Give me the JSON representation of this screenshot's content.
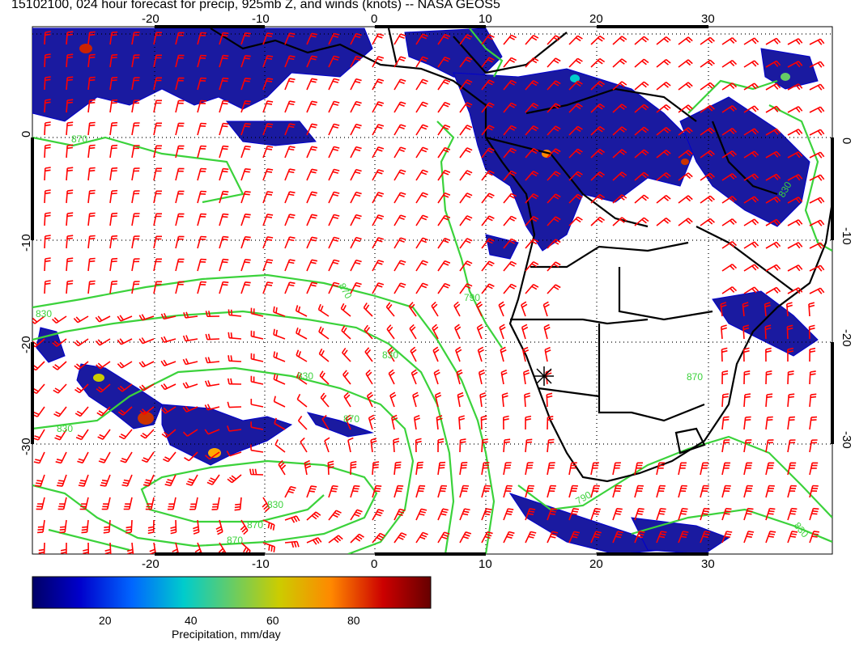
{
  "title": "15102100, 024 hour forecast for precip, 925mb Z, and winds (knots) -- NASA GEOS5",
  "axes": {
    "lon_ticks": [
      "-20",
      "-10",
      "0",
      "10",
      "20",
      "30"
    ],
    "lat_ticks": [
      "0",
      "-10",
      "-20",
      "-30"
    ]
  },
  "contours": {
    "color": "#3bd23b",
    "labels": [
      "870",
      "830",
      "790",
      "870",
      "830",
      "830",
      "870",
      "830",
      "830",
      "790",
      "830",
      "870",
      "870",
      "830",
      "870"
    ]
  },
  "wind_barb_color": "#ff0000",
  "marker": "sunburst-asterisk",
  "colorbar": {
    "title": "Precipitation, mm/day",
    "ticks": [
      "20",
      "40",
      "60",
      "80"
    ],
    "stops": [
      "#000066",
      "#0000cc",
      "#0066ff",
      "#00cccc",
      "#66cc66",
      "#cccc00",
      "#ff8800",
      "#cc0000",
      "#660000"
    ]
  }
}
